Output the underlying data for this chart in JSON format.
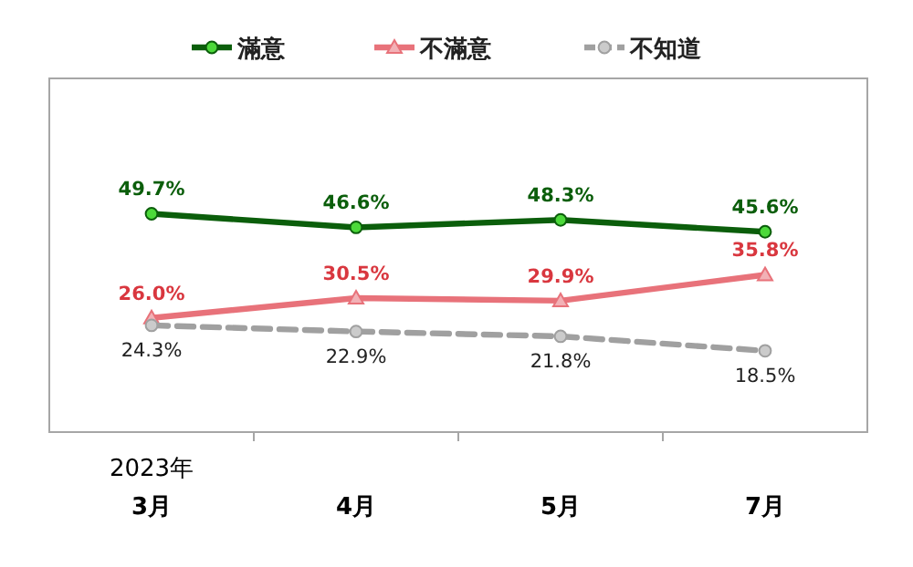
{
  "chart_data": {
    "type": "line",
    "categories": [
      "3月",
      "4月",
      "5月",
      "7月"
    ],
    "series": [
      {
        "name": "滿意",
        "color": "#0b5e0b",
        "values": [
          49.7,
          46.6,
          48.3,
          45.6
        ],
        "marker": "circle",
        "value_labels": [
          "49.7%",
          "46.6%",
          "48.3%",
          "45.6%"
        ]
      },
      {
        "name": "不滿意",
        "color": "#e8727a",
        "values": [
          26.0,
          30.5,
          29.9,
          35.8
        ],
        "marker": "triangle",
        "value_labels": [
          "26.0%",
          "30.5%",
          "29.9%",
          "35.8%"
        ]
      },
      {
        "name": "不知道",
        "color": "#a0a0a0",
        "values": [
          24.3,
          22.9,
          21.8,
          18.5
        ],
        "marker": "circle",
        "line_style": "dashed",
        "value_labels": [
          "24.3%",
          "22.9%",
          "21.8%",
          "18.5%"
        ]
      }
    ],
    "legend": "top",
    "tick_labels": "x",
    "annotations": [
      "2023年"
    ]
  }
}
